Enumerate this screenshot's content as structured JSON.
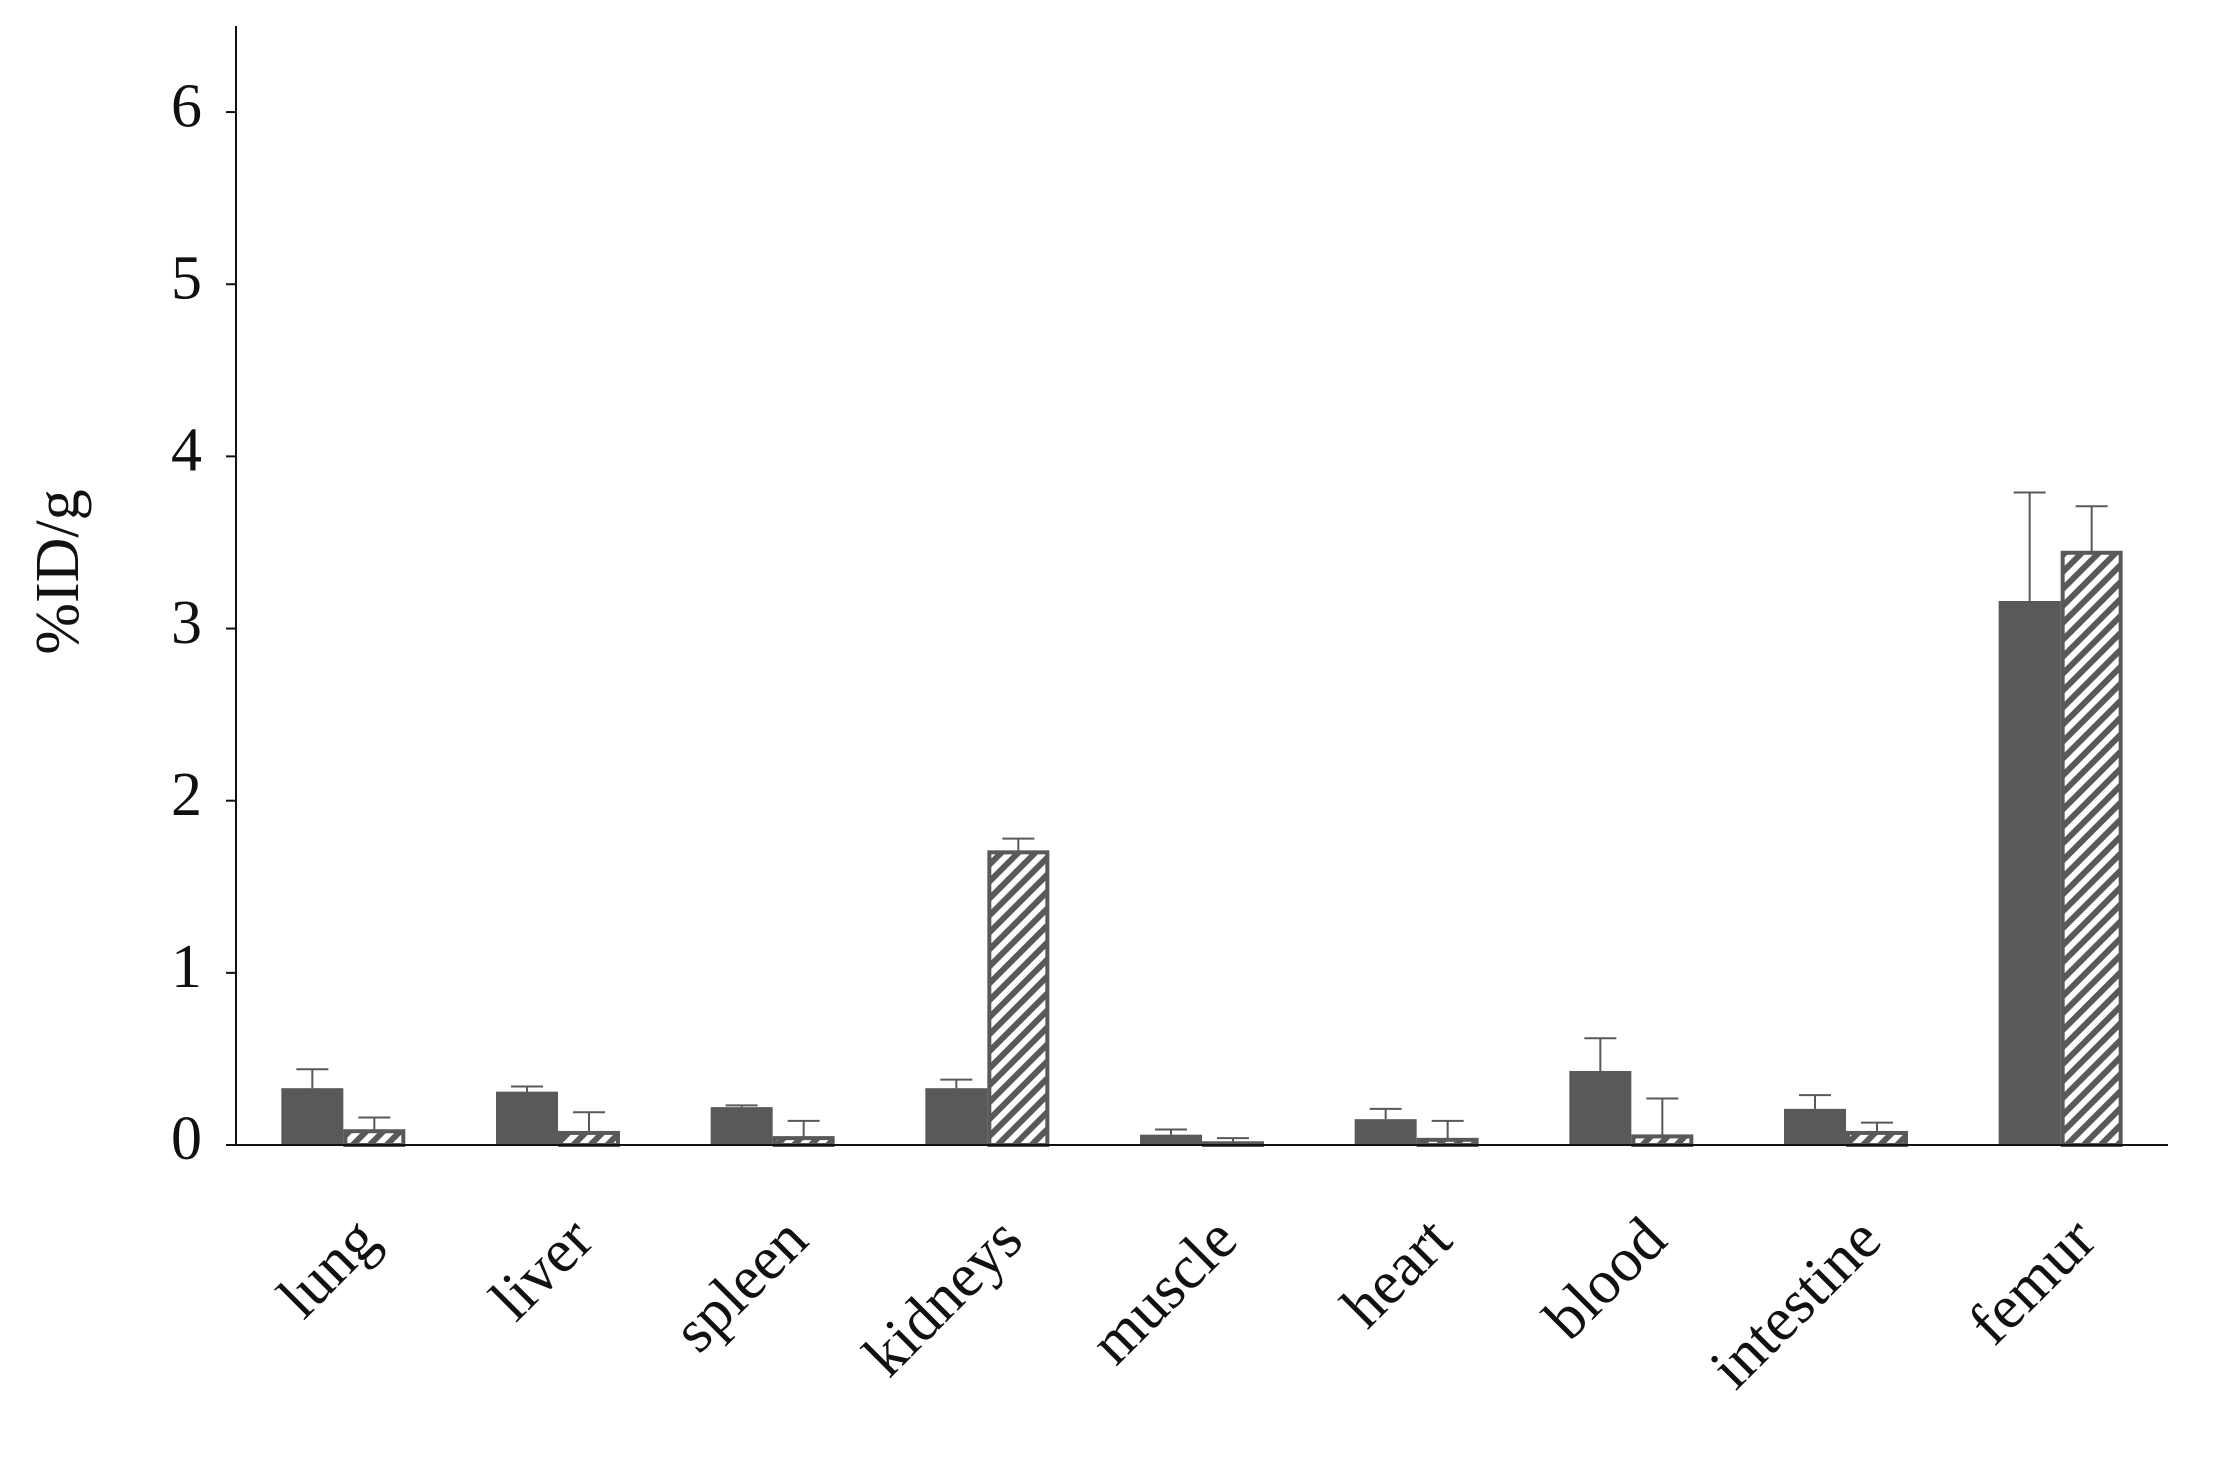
{
  "chart_data": {
    "type": "bar",
    "y_label": "%ID/g",
    "categories": [
      "lung",
      "liver",
      "spleen",
      "kidneys",
      "muscle",
      "heart",
      "blood",
      "intestine",
      "femur"
    ],
    "series": [
      {
        "color": "#595959",
        "pattern": "solid",
        "values": [
          0.33,
          0.31,
          0.22,
          0.33,
          0.06,
          0.15,
          0.43,
          0.21,
          3.16
        ],
        "errors": [
          0.11,
          0.03,
          0.01,
          0.05,
          0.03,
          0.06,
          0.19,
          0.08,
          0.63
        ]
      },
      {
        "color": "#595959",
        "pattern": "hatch",
        "values": [
          0.08,
          0.07,
          0.04,
          1.7,
          0.01,
          0.03,
          0.05,
          0.07,
          3.44
        ],
        "errors": [
          0.08,
          0.12,
          0.1,
          0.08,
          0.03,
          0.11,
          0.22,
          0.06,
          0.27
        ]
      }
    ],
    "ylim": [
      0,
      6.5
    ],
    "yticks": [
      0,
      1,
      2,
      3,
      4,
      5,
      6
    ]
  }
}
